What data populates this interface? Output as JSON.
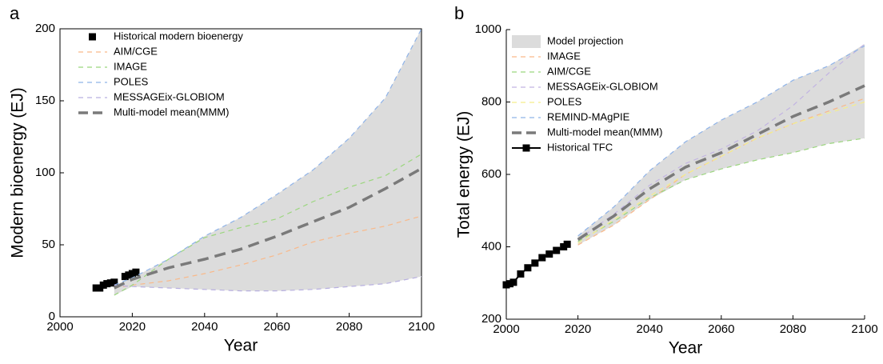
{
  "chart_data": [
    {
      "type": "line",
      "label": "a",
      "xlabel": "Year",
      "ylabel": "Modern bioenergy (EJ)",
      "xlim": [
        2000,
        2100
      ],
      "xticks": [
        2000,
        2020,
        2040,
        2060,
        2080,
        2100
      ],
      "ylim": [
        0,
        200
      ],
      "yticks": [
        0,
        50,
        100,
        150,
        200
      ],
      "frame": true,
      "envelope": true,
      "envelope_color": "#dcdcdc",
      "series": [
        {
          "name": "Historical modern bioenergy",
          "color": "#000000",
          "style": "points",
          "x": [
            2010,
            2011,
            2012,
            2013,
            2014,
            2015,
            2018,
            2019,
            2020,
            2021
          ],
          "values": [
            20,
            20,
            22,
            23,
            23.5,
            24,
            28,
            29,
            30,
            31
          ]
        },
        {
          "name": "AIM/CGE",
          "color": "#f9b98a",
          "style": "dashed",
          "x": [
            2015,
            2020,
            2030,
            2040,
            2050,
            2060,
            2070,
            2080,
            2090,
            2100
          ],
          "values": [
            20,
            22,
            25,
            30,
            36,
            43,
            52,
            58,
            63,
            70
          ]
        },
        {
          "name": "IMAGE",
          "color": "#9bd67e",
          "style": "dashed",
          "x": [
            2015,
            2020,
            2030,
            2040,
            2050,
            2060,
            2070,
            2080,
            2090,
            2100
          ],
          "values": [
            15,
            22,
            40,
            55,
            62,
            68,
            80,
            90,
            98,
            113
          ]
        },
        {
          "name": "POLES",
          "color": "#8fb3e8",
          "style": "dashed",
          "x": [
            2015,
            2020,
            2030,
            2040,
            2050,
            2060,
            2070,
            2080,
            2090,
            2100
          ],
          "values": [
            22,
            27,
            40,
            56,
            69,
            85,
            102,
            124,
            152,
            200
          ]
        },
        {
          "name": "MESSAGEix-GLOBIOM",
          "color": "#b8b0e0",
          "style": "dashed",
          "x": [
            2015,
            2020,
            2030,
            2040,
            2050,
            2060,
            2070,
            2080,
            2090,
            2100
          ],
          "values": [
            22,
            21,
            20,
            19,
            18,
            18,
            19,
            21,
            23,
            28
          ]
        },
        {
          "name": "Multi-model mean(MMM)",
          "color": "#7a7a7a",
          "style": "mean",
          "x": [
            2015,
            2020,
            2030,
            2040,
            2050,
            2060,
            2070,
            2080,
            2090,
            2100
          ],
          "values": [
            20,
            26,
            34,
            40,
            47,
            56,
            66,
            76,
            89,
            103
          ]
        }
      ]
    },
    {
      "type": "line",
      "label": "b",
      "xlabel": "Year",
      "ylabel": "Total energy (EJ)",
      "xlim": [
        2000,
        2100
      ],
      "xticks": [
        2000,
        2020,
        2040,
        2060,
        2080,
        2100
      ],
      "ylim": [
        200,
        1000
      ],
      "yticks": [
        200,
        400,
        600,
        800,
        1000
      ],
      "frame": false,
      "envelope": true,
      "envelope_color": "#dcdcdc",
      "envelope_label": "Model projection",
      "series": [
        {
          "name": "IMAGE",
          "color": "#f9b98a",
          "style": "dashed",
          "x": [
            2020,
            2030,
            2040,
            2050,
            2060,
            2070,
            2080,
            2090,
            2100
          ],
          "values": [
            405,
            460,
            530,
            600,
            650,
            700,
            740,
            775,
            810
          ]
        },
        {
          "name": "AIM/CGE",
          "color": "#9bd67e",
          "style": "dashed",
          "x": [
            2020,
            2030,
            2040,
            2050,
            2060,
            2070,
            2080,
            2090,
            2100
          ],
          "values": [
            415,
            470,
            535,
            585,
            615,
            640,
            660,
            685,
            700
          ]
        },
        {
          "name": "MESSAGEix-GLOBIOM",
          "color": "#c2b4e2",
          "style": "dashed",
          "x": [
            2020,
            2030,
            2040,
            2050,
            2060,
            2070,
            2080,
            2090,
            2100
          ],
          "values": [
            420,
            490,
            570,
            630,
            670,
            720,
            790,
            880,
            960
          ]
        },
        {
          "name": "POLES",
          "color": "#f5ee8a",
          "style": "dashed",
          "x": [
            2020,
            2030,
            2040,
            2050,
            2060,
            2070,
            2080,
            2090,
            2100
          ],
          "values": [
            410,
            475,
            540,
            600,
            650,
            700,
            740,
            770,
            800
          ]
        },
        {
          "name": "REMIND-MAgPIE",
          "color": "#8fb3e8",
          "style": "dashed",
          "x": [
            2020,
            2030,
            2040,
            2050,
            2060,
            2070,
            2080,
            2090,
            2100
          ],
          "values": [
            430,
            510,
            610,
            690,
            750,
            800,
            860,
            900,
            955
          ]
        },
        {
          "name": "Multi-model mean(MMM)",
          "color": "#7a7a7a",
          "style": "mean",
          "x": [
            2020,
            2030,
            2040,
            2050,
            2060,
            2070,
            2080,
            2090,
            2100
          ],
          "values": [
            420,
            485,
            560,
            620,
            660,
            710,
            760,
            800,
            845
          ]
        },
        {
          "name": "Historical TFC",
          "color": "#000000",
          "style": "line-markers",
          "x": [
            2000,
            2001,
            2002,
            2004,
            2006,
            2008,
            2010,
            2012,
            2014,
            2016,
            2017
          ],
          "values": [
            295,
            298,
            302,
            325,
            342,
            355,
            370,
            380,
            390,
            400,
            407
          ]
        }
      ]
    }
  ]
}
